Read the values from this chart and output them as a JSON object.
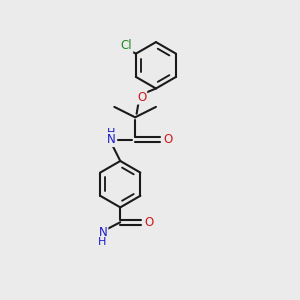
{
  "background_color": "#ebebeb",
  "bond_color": "#1a1a1a",
  "bond_width": 1.5,
  "atom_colors": {
    "N": "#1a1acc",
    "O": "#cc1a1a",
    "Cl": "#228B22",
    "C": "#1a1a1a"
  },
  "font_size": 8.5,
  "fig_bg": "#ebebeb"
}
